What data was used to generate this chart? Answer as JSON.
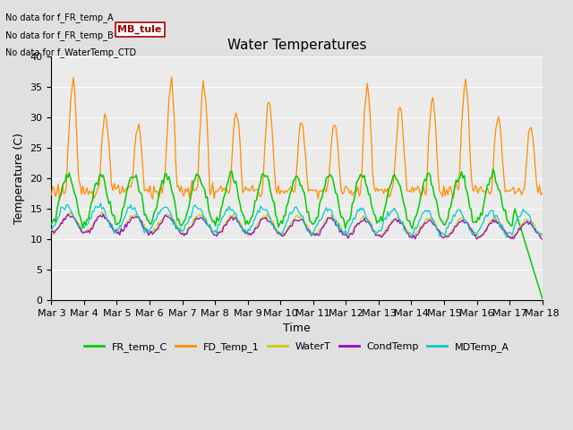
{
  "title": "Water Temperatures",
  "xlabel": "Time",
  "ylabel": "Temperature (C)",
  "ylim": [
    0,
    40
  ],
  "xlim": [
    0,
    15
  ],
  "fig_bg": "#e0e0e0",
  "plot_bg": "#ebebeb",
  "annotations": [
    "No data for f_FR_temp_A",
    "No data for f_FR_temp_B",
    "No data for f_WaterTemp_CTD"
  ],
  "mb_tule_label": "MB_tule",
  "xtick_labels": [
    "Mar 3",
    "Mar 4",
    "Mar 5",
    "Mar 6",
    "Mar 7",
    "Mar 8",
    "Mar 9",
    "Mar 10",
    "Mar 11",
    "Mar 12",
    "Mar 13",
    "Mar 14",
    "Mar 15",
    "Mar 16",
    "Mar 17",
    "Mar 18"
  ],
  "legend_entries": [
    "FR_temp_C",
    "FD_Temp_1",
    "WaterT",
    "CondTemp",
    "MDTemp_A"
  ],
  "colors": {
    "FR_temp_C": "#00cc00",
    "FD_Temp_1": "#ff8c00",
    "WaterT": "#cccc00",
    "CondTemp": "#9900cc",
    "MDTemp_A": "#00cccc"
  },
  "yticks": [
    0,
    5,
    10,
    15,
    20,
    25,
    30,
    35,
    40
  ]
}
